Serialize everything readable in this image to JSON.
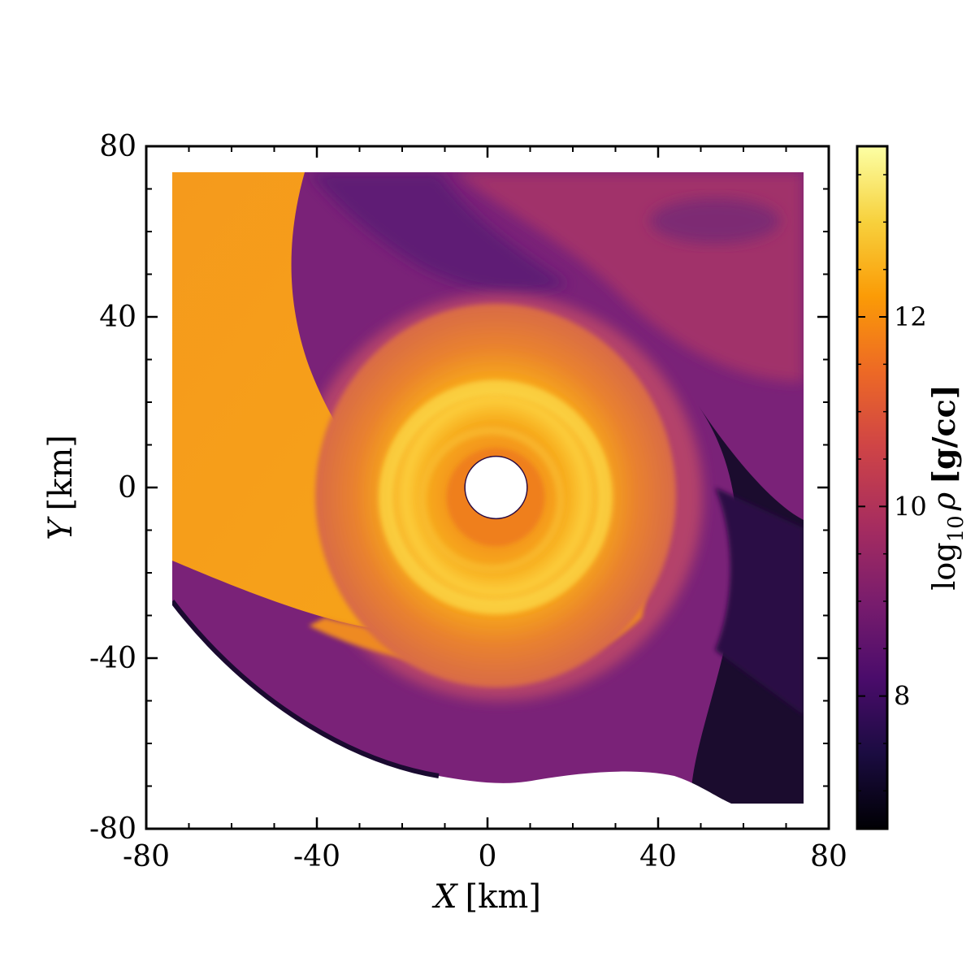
{
  "chart_data": {
    "type": "heatmap",
    "description_quantity": "density",
    "x_axis": {
      "label_var": "X",
      "label_unit": "[km]",
      "range": [
        -80,
        80
      ],
      "ticks": [
        "-80",
        "-40",
        "0",
        "40",
        "80"
      ],
      "tick_values": [
        -80,
        -40,
        0,
        40,
        80
      ]
    },
    "y_axis": {
      "label_var": "Y",
      "label_unit": "[km]",
      "range": [
        -80,
        80
      ],
      "ticks": [
        "-80",
        "-40",
        "0",
        "40",
        "80"
      ],
      "tick_values": [
        -80,
        -40,
        0,
        40,
        80
      ]
    },
    "colorbar": {
      "label_prefix": "log",
      "label_sub": "10",
      "label_var": "ρ",
      "label_unit": "[g/cc]",
      "range": [
        6.6,
        13.8
      ],
      "ticks": [
        "8",
        "10",
        "12"
      ],
      "tick_values": [
        8,
        10,
        12
      ],
      "colormap": "inferno",
      "stops": [
        "#000004",
        "#1b0c41",
        "#4a0c6b",
        "#781c6d",
        "#a52c60",
        "#cf4446",
        "#ed6925",
        "#fb9b06",
        "#f7d13d",
        "#fcffa4"
      ]
    },
    "data_extent": {
      "x": [
        -74,
        74
      ],
      "y": [
        -74,
        74
      ]
    },
    "excised_region": {
      "center_x": 2,
      "center_y": 0,
      "radius_km": 7.3
    },
    "grid": false
  }
}
